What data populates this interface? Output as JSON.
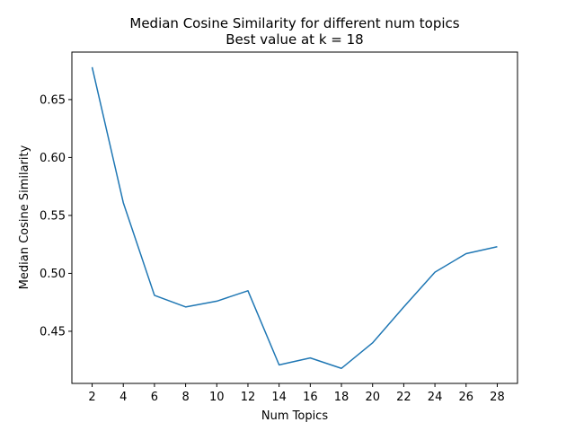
{
  "chart_data": {
    "type": "line",
    "title": "Median Cosine Similarity for different num topics",
    "subtitle": "Best value at k = 18",
    "xlabel": "Num Topics",
    "ylabel": "Median Cosine Similarity",
    "x": [
      2,
      4,
      6,
      8,
      10,
      12,
      14,
      16,
      18,
      20,
      22,
      24,
      26,
      28
    ],
    "xticks": [
      "2",
      "4",
      "6",
      "8",
      "10",
      "12",
      "14",
      "16",
      "18",
      "20",
      "22",
      "24",
      "26",
      "28"
    ],
    "yticks": [
      "0.45",
      "0.50",
      "0.55",
      "0.60",
      "0.65"
    ],
    "series": [
      {
        "values": [
          0.678,
          0.561,
          0.481,
          0.471,
          0.476,
          0.485,
          0.421,
          0.427,
          0.418,
          0.44,
          0.471,
          0.501,
          0.517,
          0.523
        ],
        "color": "#1f77b4"
      }
    ],
    "xlim": [
      0.7,
      29.3
    ],
    "ylim": [
      0.405,
      0.691
    ],
    "grid": false
  }
}
